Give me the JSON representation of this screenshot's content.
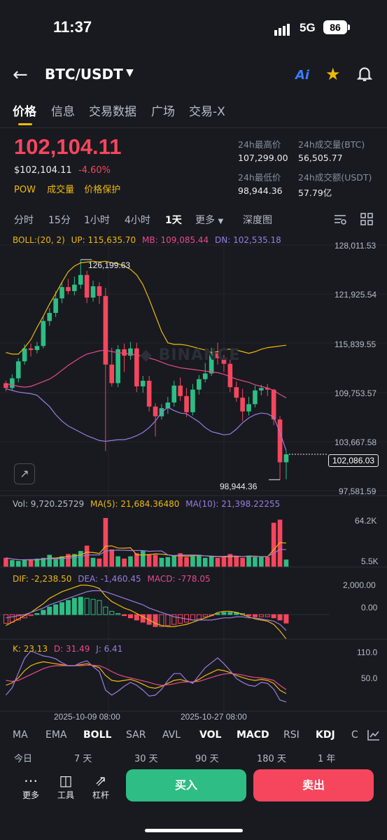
{
  "status": {
    "time": "11:37",
    "network": "5G",
    "battery": "86"
  },
  "header": {
    "pair": "BTC/USDT",
    "ai_label": "Ai"
  },
  "tabs": [
    "价格",
    "信息",
    "交易数据",
    "广场",
    "交易-X"
  ],
  "price": {
    "last": "102,104.11",
    "usd": "$102,104.11",
    "change": "-4.60%",
    "tags": [
      "POW",
      "成交量",
      "价格保护"
    ]
  },
  "stats": [
    {
      "label": "24h最高价",
      "value": "107,299.00"
    },
    {
      "label": "24h成交量(BTC)",
      "value": "56,505.77"
    },
    {
      "label": "24h最低价",
      "value": "98,944.36"
    },
    {
      "label": "24h成交额(USDT)",
      "value": "57.79亿"
    }
  ],
  "timeframes": [
    "分时",
    "15分",
    "1小时",
    "4小时",
    "1天",
    "更多",
    "深度图"
  ],
  "boll_legend": {
    "name": "BOLL:(20, 2)",
    "up": "UP: 115,635.70",
    "mb": "MB: 109,085.44",
    "dn": "DN: 102,535.18"
  },
  "price_axis": [
    "128,011.53",
    "121,925.54",
    "115,839.55",
    "109,753.57",
    "103,667.58",
    "97,581.59"
  ],
  "current_price_tag": "102,086.03",
  "high_marker": "126,199.63",
  "low_marker": "98,944.36",
  "watermark": "BINANCE",
  "vol_legend": {
    "vol": "Vol: 9,720.25729",
    "ma5": "MA(5): 21,684.36480",
    "ma10": "MA(10): 21,398.22255"
  },
  "vol_axis": [
    "64.2K",
    "5.5K"
  ],
  "macd_legend": {
    "dif": "DIF: -2,238.50",
    "dea": "DEA: -1,460.45",
    "macd": "MACD: -778.05"
  },
  "macd_axis": [
    "2,000.00",
    "0.00"
  ],
  "kdj_legend": {
    "k": "K: 23.13",
    "d": "D: 31.49",
    "j": "J: 6.41"
  },
  "kdj_axis": [
    "110.0",
    "50.0"
  ],
  "date_axis": [
    "2025-10-09 08:00",
    "2025-10-27 08:00"
  ],
  "indicators": [
    "MA",
    "EMA",
    "BOLL",
    "SAR",
    "AVL",
    "VOL",
    "MACD",
    "RSI",
    "KDJ",
    "C"
  ],
  "periods": [
    "今日",
    "7 天",
    "30 天",
    "90 天",
    "180 天",
    "1 年"
  ],
  "toolbar": {
    "more": "更多",
    "tools": "工具",
    "leverage": "杠杆"
  },
  "buttons": {
    "buy": "买入",
    "sell": "卖出"
  },
  "colors": {
    "up": "#2ebd85",
    "down": "#f6465d",
    "accent": "#f0b90b",
    "boll_up": "#f0b90b",
    "boll_mb": "#e84a8a",
    "boll_dn": "#9b7ce0"
  },
  "chart_data": {
    "type": "candlestick",
    "y_range": [
      97581.59,
      128011.53
    ],
    "high_label": 126199.63,
    "low_label": 98944.36,
    "last": 102086.03,
    "candles": [
      {
        "o": 110900,
        "c": 110300,
        "h": 111200,
        "l": 109900
      },
      {
        "o": 110300,
        "c": 111500,
        "h": 112000,
        "l": 110000
      },
      {
        "o": 111500,
        "c": 113600,
        "h": 114000,
        "l": 111000
      },
      {
        "o": 113600,
        "c": 115200,
        "h": 115700,
        "l": 113200
      },
      {
        "o": 115200,
        "c": 115000,
        "h": 115800,
        "l": 114200
      },
      {
        "o": 115000,
        "c": 115500,
        "h": 116000,
        "l": 114600
      },
      {
        "o": 115500,
        "c": 118600,
        "h": 119200,
        "l": 115200
      },
      {
        "o": 118600,
        "c": 119600,
        "h": 120200,
        "l": 118000
      },
      {
        "o": 119600,
        "c": 121400,
        "h": 122300,
        "l": 119100
      },
      {
        "o": 121400,
        "c": 122800,
        "h": 123300,
        "l": 120800
      },
      {
        "o": 122800,
        "c": 122300,
        "h": 123800,
        "l": 121900
      },
      {
        "o": 122300,
        "c": 123100,
        "h": 124100,
        "l": 121800
      },
      {
        "o": 123100,
        "c": 124300,
        "h": 126199,
        "l": 122600
      },
      {
        "o": 124300,
        "c": 121500,
        "h": 124800,
        "l": 120800
      },
      {
        "o": 121500,
        "c": 122900,
        "h": 123600,
        "l": 121000
      },
      {
        "o": 122900,
        "c": 121700,
        "h": 123400,
        "l": 120700
      },
      {
        "o": 121700,
        "c": 113200,
        "h": 122700,
        "l": 102500
      },
      {
        "o": 113200,
        "c": 110900,
        "h": 115300,
        "l": 110500
      },
      {
        "o": 110900,
        "c": 115100,
        "h": 115600,
        "l": 110400
      },
      {
        "o": 115100,
        "c": 114300,
        "h": 115800,
        "l": 112300
      },
      {
        "o": 114300,
        "c": 115200,
        "h": 116000,
        "l": 113800
      },
      {
        "o": 115200,
        "c": 110500,
        "h": 115900,
        "l": 109800
      },
      {
        "o": 110500,
        "c": 111200,
        "h": 111800,
        "l": 109700
      },
      {
        "o": 111200,
        "c": 108000,
        "h": 111800,
        "l": 107400
      },
      {
        "o": 108000,
        "c": 106800,
        "h": 108400,
        "l": 104300
      },
      {
        "o": 106800,
        "c": 107800,
        "h": 108300,
        "l": 106400
      },
      {
        "o": 107800,
        "c": 108500,
        "h": 109200,
        "l": 107100
      },
      {
        "o": 108500,
        "c": 110600,
        "h": 111200,
        "l": 108000
      },
      {
        "o": 110600,
        "c": 109300,
        "h": 111600,
        "l": 108700
      },
      {
        "o": 109300,
        "c": 107300,
        "h": 110300,
        "l": 106700
      },
      {
        "o": 107300,
        "c": 110100,
        "h": 110800,
        "l": 106900
      },
      {
        "o": 110100,
        "c": 111400,
        "h": 111900,
        "l": 109500
      },
      {
        "o": 111400,
        "c": 112100,
        "h": 113400,
        "l": 111000
      },
      {
        "o": 112100,
        "c": 114600,
        "h": 115300,
        "l": 111800
      },
      {
        "o": 114600,
        "c": 114000,
        "h": 115900,
        "l": 113200
      },
      {
        "o": 114000,
        "c": 113300,
        "h": 114400,
        "l": 112300
      },
      {
        "o": 113300,
        "c": 110400,
        "h": 113800,
        "l": 109800
      },
      {
        "o": 110400,
        "c": 109100,
        "h": 111100,
        "l": 108600
      },
      {
        "o": 109100,
        "c": 107400,
        "h": 110200,
        "l": 106200
      },
      {
        "o": 107400,
        "c": 108300,
        "h": 109200,
        "l": 106900
      },
      {
        "o": 108300,
        "c": 110000,
        "h": 110600,
        "l": 107900
      },
      {
        "o": 110000,
        "c": 110300,
        "h": 110700,
        "l": 109400
      },
      {
        "o": 110300,
        "c": 110100,
        "h": 110800,
        "l": 109300
      },
      {
        "o": 110100,
        "c": 106400,
        "h": 110200,
        "l": 105700
      },
      {
        "o": 106400,
        "c": 101100,
        "h": 106800,
        "l": 98944
      },
      {
        "o": 101100,
        "c": 102086,
        "h": 102500,
        "l": 99000
      }
    ],
    "boll_up": [
      114700,
      114500,
      114500,
      115300,
      116300,
      117800,
      119200,
      120700,
      122000,
      123400,
      124700,
      125400,
      125800,
      125900,
      126000,
      125900,
      126000,
      125800,
      125700,
      125400,
      125000,
      124300,
      123100,
      121300,
      119300,
      117300,
      115900,
      115700,
      115700,
      115600,
      115400,
      115200,
      115000,
      114700,
      114800,
      115100,
      115100,
      115000,
      114800,
      114600,
      114800,
      115100,
      115300,
      115400,
      115500,
      115600
    ],
    "boll_mb": [
      110800,
      110700,
      110500,
      110400,
      110500,
      110800,
      111100,
      111400,
      111900,
      112500,
      113100,
      113600,
      114100,
      114500,
      114700,
      114900,
      115000,
      114800,
      114700,
      114600,
      114500,
      114400,
      114200,
      114000,
      113800,
      113500,
      113200,
      113000,
      112800,
      112700,
      112600,
      112500,
      112400,
      112300,
      112200,
      112000,
      111700,
      111400,
      111200,
      111000,
      110700,
      110500,
      110300,
      110000,
      109500,
      109085
    ],
    "boll_dn": [
      110200,
      110000,
      109800,
      109700,
      109600,
      109400,
      108700,
      108000,
      107000,
      106200,
      105600,
      105200,
      104800,
      104400,
      104100,
      103800,
      103700,
      103800,
      103900,
      103900,
      104100,
      104400,
      104800,
      105400,
      106200,
      107300,
      107900,
      107500,
      107200,
      107100,
      106600,
      106100,
      105400,
      104900,
      104700,
      104500,
      104600,
      105200,
      106000,
      106600,
      107000,
      107200,
      107100,
      106700,
      104800,
      102535
    ],
    "volume": [
      12000,
      9000,
      8000,
      9000,
      10000,
      11000,
      12000,
      16000,
      10000,
      14000,
      17000,
      17000,
      21000,
      28000,
      12000,
      11000,
      64200,
      23000,
      14000,
      11000,
      14000,
      18000,
      21000,
      17000,
      16000,
      12000,
      13000,
      15000,
      18000,
      13000,
      14000,
      16000,
      12000,
      14000,
      12000,
      13000,
      17000,
      14000,
      12000,
      15000,
      13000,
      14000,
      13000,
      58000,
      62000,
      9720
    ],
    "macd": [
      -800,
      -700,
      -500,
      -300,
      -100,
      100,
      400,
      700,
      900,
      1100,
      1300,
      1500,
      1600,
      1500,
      1400,
      1300,
      700,
      300,
      100,
      -100,
      -300,
      -500,
      -700,
      -900,
      -1100,
      -1100,
      -1000,
      -900,
      -800,
      -700,
      -500,
      -400,
      -200,
      -100,
      100,
      200,
      200,
      200,
      100,
      -100,
      -200,
      -200,
      -200,
      -300,
      -500,
      -778
    ],
    "dif": [
      -1000,
      -700,
      -400,
      -100,
      200,
      600,
      1000,
      1500,
      1800,
      2100,
      2300,
      2500,
      2700,
      2700,
      2600,
      2400,
      1700,
      1200,
      900,
      600,
      400,
      100,
      -200,
      -500,
      -800,
      -1000,
      -1100,
      -1100,
      -1000,
      -900,
      -700,
      -500,
      -300,
      -100,
      200,
      300,
      300,
      200,
      0,
      -200,
      -400,
      -500,
      -600,
      -900,
      -1500,
      -2238
    ],
    "dea": [
      -300,
      -200,
      -100,
      0,
      200,
      400,
      600,
      900,
      1100,
      1300,
      1500,
      1700,
      1900,
      2100,
      2200,
      2200,
      2100,
      1900,
      1700,
      1500,
      1300,
      1100,
      900,
      600,
      400,
      200,
      0,
      -200,
      -300,
      -400,
      -500,
      -500,
      -500,
      -500,
      -400,
      -300,
      -300,
      -200,
      -200,
      -300,
      -300,
      -400,
      -500,
      -600,
      -900,
      -1460
    ],
    "kdj_k": [
      40,
      45,
      55,
      70,
      80,
      85,
      88,
      86,
      84,
      82,
      80,
      80,
      82,
      84,
      80,
      76,
      60,
      50,
      48,
      50,
      52,
      48,
      42,
      36,
      34,
      38,
      44,
      50,
      52,
      48,
      46,
      52,
      60,
      66,
      72,
      70,
      66,
      60,
      56,
      52,
      50,
      52,
      50,
      44,
      30,
      23
    ],
    "kdj_d": [
      50,
      48,
      50,
      56,
      62,
      68,
      74,
      78,
      80,
      80,
      80,
      80,
      80,
      81,
      81,
      80,
      75,
      68,
      62,
      58,
      55,
      52,
      49,
      46,
      42,
      40,
      41,
      43,
      46,
      47,
      47,
      48,
      52,
      56,
      60,
      63,
      64,
      63,
      61,
      58,
      56,
      55,
      53,
      50,
      40,
      31
    ],
    "kdj_j": [
      20,
      35,
      65,
      95,
      110,
      105,
      100,
      98,
      94,
      86,
      80,
      80,
      86,
      90,
      78,
      68,
      30,
      20,
      28,
      38,
      46,
      40,
      30,
      18,
      20,
      32,
      50,
      64,
      64,
      50,
      44,
      60,
      76,
      86,
      96,
      84,
      70,
      54,
      46,
      40,
      38,
      46,
      44,
      32,
      10,
      6
    ]
  }
}
